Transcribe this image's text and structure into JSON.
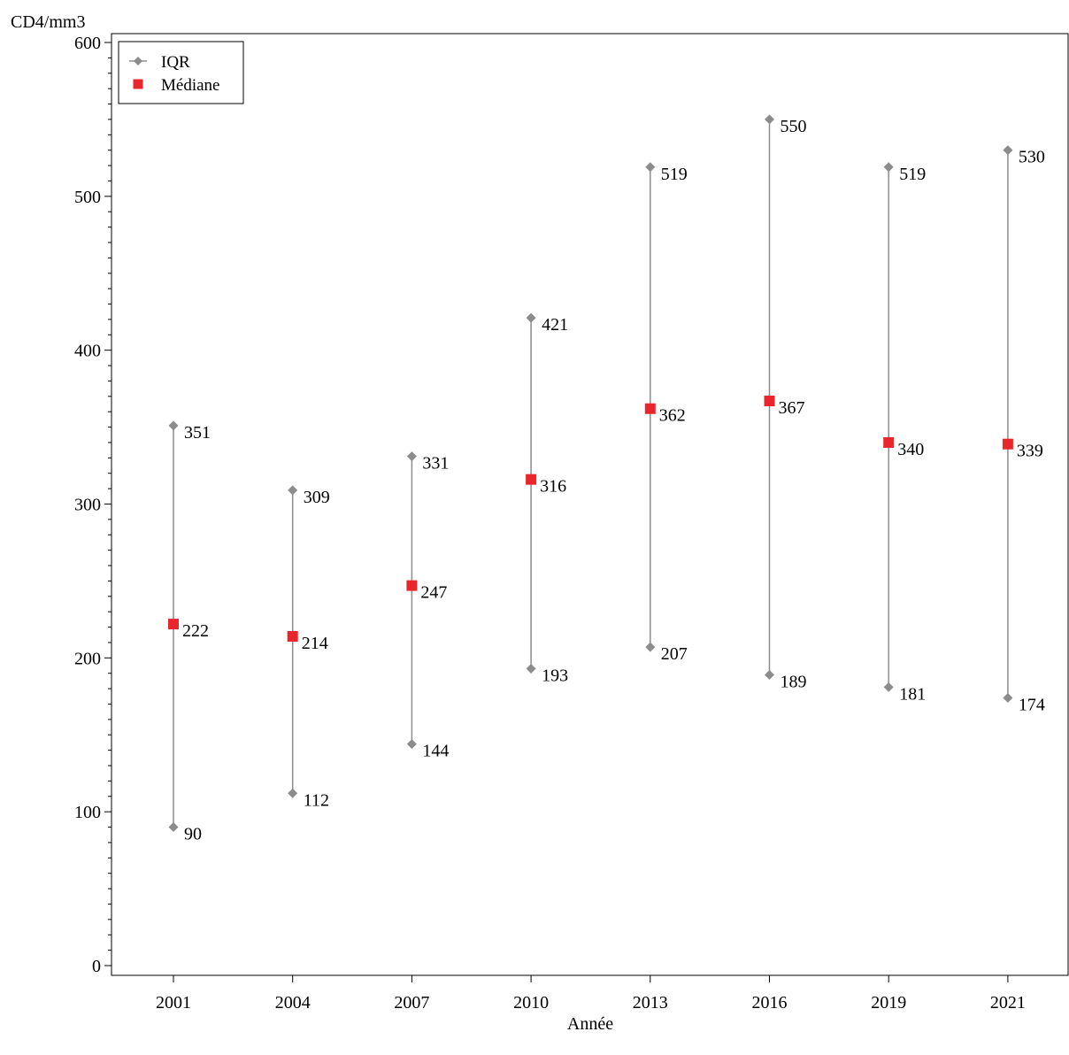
{
  "chart_data": {
    "type": "range",
    "ylabel": "CD4/mm3",
    "xlabel": "Année",
    "ylim": [
      0,
      600
    ],
    "yticks": [
      0,
      100,
      200,
      300,
      400,
      500,
      600
    ],
    "grid": false,
    "legend_position": "top-left",
    "categories": [
      "2001",
      "2004",
      "2007",
      "2010",
      "2013",
      "2016",
      "2019",
      "2021"
    ],
    "series": [
      {
        "name": "IQR",
        "marker": "diamond",
        "color": "#8c8c8c",
        "q1": [
          90,
          112,
          144,
          193,
          207,
          189,
          181,
          174
        ],
        "q3": [
          351,
          309,
          331,
          421,
          519,
          550,
          519,
          530
        ]
      },
      {
        "name": "Médiane",
        "marker": "square",
        "color": "#e8262b",
        "values": [
          222,
          214,
          247,
          316,
          362,
          367,
          340,
          339
        ]
      }
    ]
  }
}
